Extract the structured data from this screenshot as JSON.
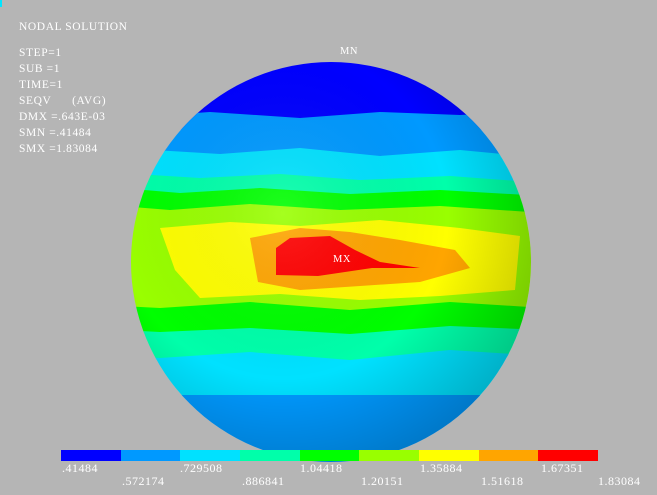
{
  "title": "NODAL SOLUTION",
  "info_lines": [
    "STEP=1",
    "SUB =1",
    "TIME=1",
    "SEQV      (AVG)",
    "DMX =.643E-03",
    "SMN =.41484",
    "SMX =1.83084"
  ],
  "markers": {
    "min": "MN",
    "max": "MX"
  },
  "legend": {
    "colors": [
      "#0000ff",
      "#0099ff",
      "#00e1ff",
      "#00ffaa",
      "#00ff00",
      "#99ff00",
      "#ffff00",
      "#ffa500",
      "#ff0000"
    ],
    "values_top": [
      ".41484",
      ".729508",
      "1.04418",
      "1.35884",
      "1.67351"
    ],
    "values_bottom": [
      ".572174",
      ".886841",
      "1.20151",
      "1.51618",
      "1.83084"
    ]
  },
  "colors": {
    "background": "#b5b5b5",
    "text": "#ffffff"
  }
}
